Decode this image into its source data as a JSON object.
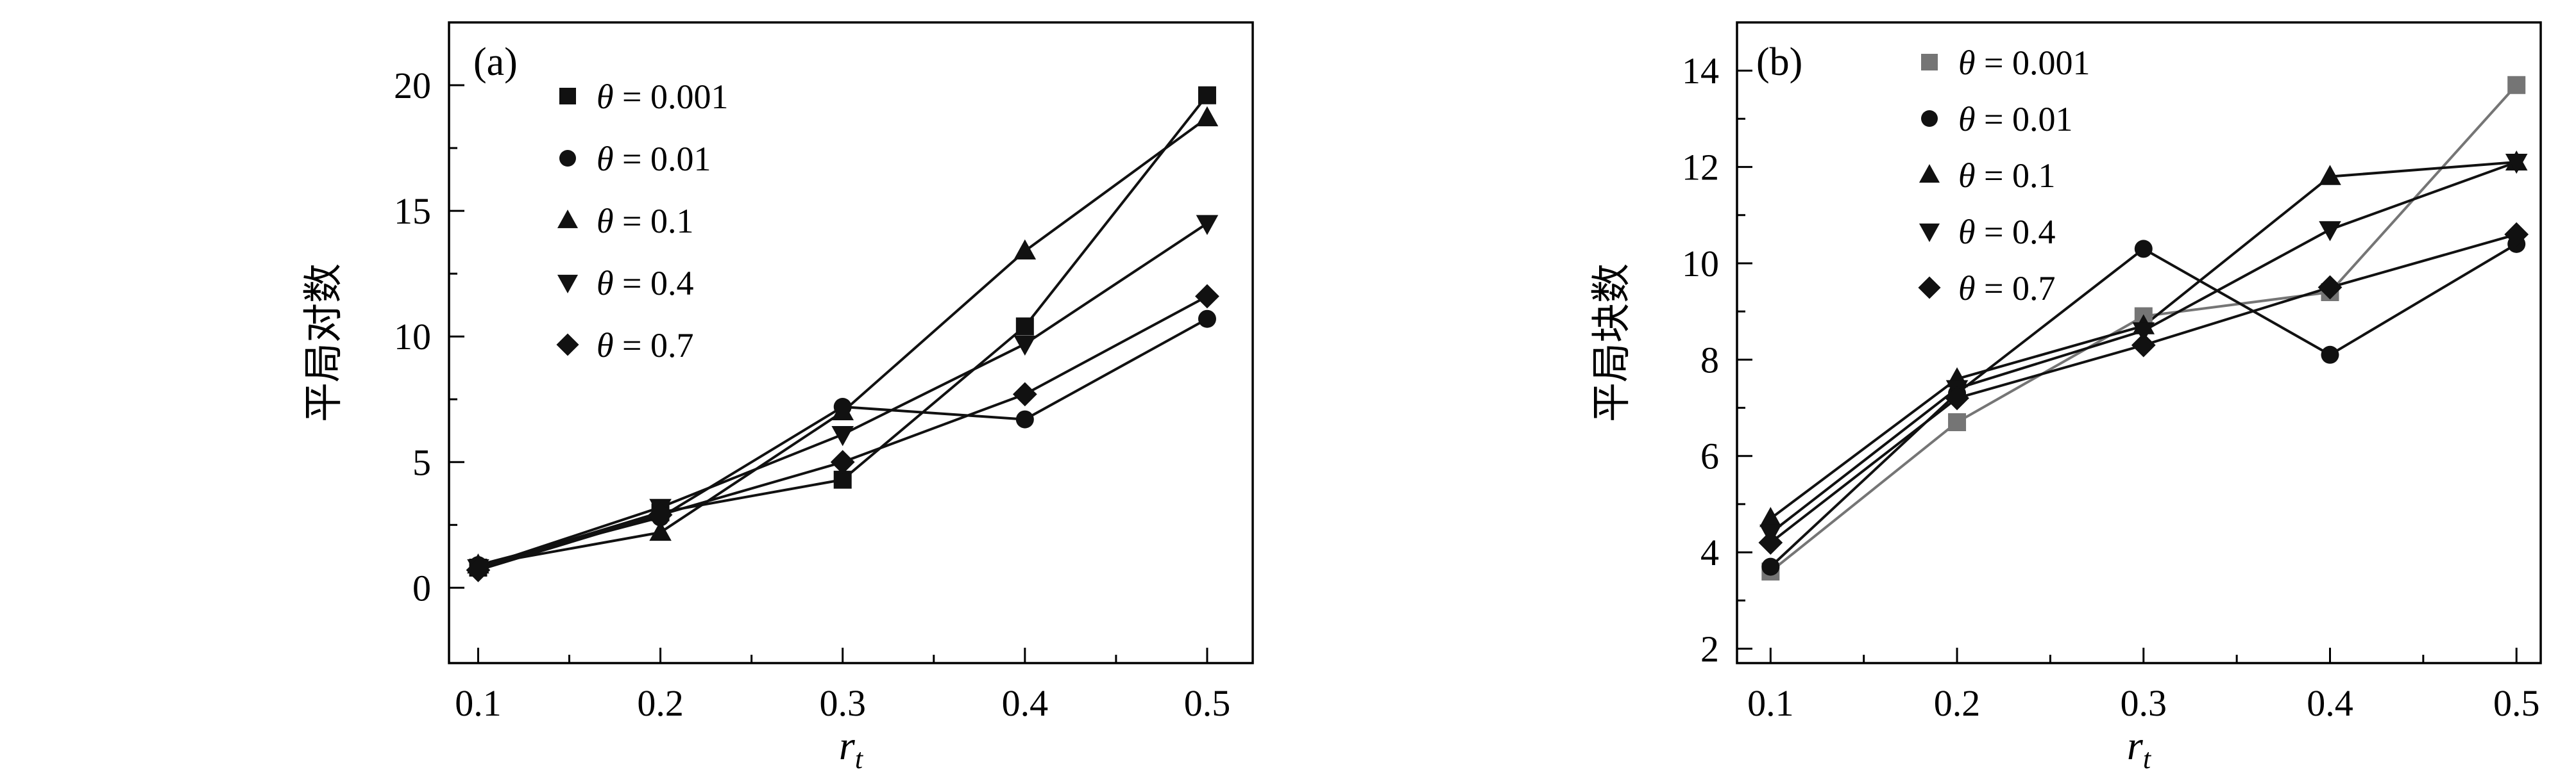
{
  "figure": {
    "background": "#ffffff",
    "text_color": "#000000"
  },
  "chart_data": [
    {
      "type": "line",
      "panel_label": "(a)",
      "xlabel": "r_t",
      "ylabel": "平局对数",
      "x": [
        0.1,
        0.2,
        0.3,
        0.4,
        0.5
      ],
      "xticks": [
        "0.1",
        "0.2",
        "0.3",
        "0.4",
        "0.5"
      ],
      "yticks": [
        0,
        5,
        10,
        15,
        20
      ],
      "xlim": [
        0.084,
        0.525
      ],
      "ylim": [
        -3,
        22.5
      ],
      "grid": false,
      "legend_position": "upper-left",
      "legend_offset": [
        185,
        115
      ],
      "legend_row_height": 97,
      "panel_label_offset": [
        38,
        82
      ],
      "series": [
        {
          "name": "θ = 0.001",
          "marker": "square",
          "color": "#111111",
          "values": [
            0.8,
            3.0,
            4.3,
            10.4,
            19.6
          ]
        },
        {
          "name": "θ = 0.01",
          "marker": "circle",
          "color": "#111111",
          "values": [
            0.9,
            2.8,
            7.2,
            6.7,
            10.7
          ]
        },
        {
          "name": "θ = 0.1",
          "marker": "triangle-up",
          "color": "#111111",
          "values": [
            0.9,
            2.2,
            7.0,
            13.4,
            18.7
          ]
        },
        {
          "name": "θ = 0.4",
          "marker": "triangle-down",
          "color": "#111111",
          "values": [
            0.8,
            3.2,
            6.1,
            9.7,
            14.5
          ]
        },
        {
          "name": "θ = 0.7",
          "marker": "diamond",
          "color": "#111111",
          "values": [
            0.7,
            2.9,
            5.0,
            7.7,
            11.6
          ]
        }
      ]
    },
    {
      "type": "line",
      "panel_label": "(b)",
      "xlabel": "r_t",
      "ylabel": "平局块数",
      "x": [
        0.1,
        0.2,
        0.3,
        0.4,
        0.5
      ],
      "xticks": [
        "0.1",
        "0.2",
        "0.3",
        "0.4",
        "0.5"
      ],
      "yticks": [
        2,
        4,
        6,
        8,
        10,
        12,
        14
      ],
      "xlim": [
        0.082,
        0.513
      ],
      "ylim": [
        1.7,
        15.0
      ],
      "grid": false,
      "legend_position": "upper-left",
      "legend_offset": [
        300,
        62
      ],
      "legend_row_height": 88,
      "panel_label_offset": [
        30,
        82
      ],
      "series": [
        {
          "name": "θ = 0.001",
          "marker": "square",
          "color": "#757575",
          "values": [
            3.6,
            6.7,
            8.9,
            9.4,
            13.7
          ]
        },
        {
          "name": "θ = 0.01",
          "marker": "circle",
          "color": "#111111",
          "values": [
            3.7,
            7.3,
            10.3,
            8.1,
            10.4
          ]
        },
        {
          "name": "θ = 0.1",
          "marker": "triangle-up",
          "color": "#111111",
          "values": [
            4.7,
            7.6,
            8.7,
            11.8,
            12.1
          ]
        },
        {
          "name": "θ = 0.4",
          "marker": "triangle-down",
          "color": "#111111",
          "values": [
            4.4,
            7.4,
            8.6,
            10.7,
            12.1
          ]
        },
        {
          "name": "θ = 0.7",
          "marker": "diamond",
          "color": "#111111",
          "values": [
            4.2,
            7.2,
            8.3,
            9.5,
            10.6
          ]
        }
      ]
    }
  ]
}
